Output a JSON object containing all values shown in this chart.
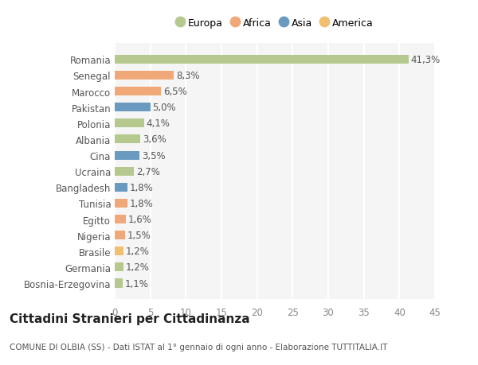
{
  "categories": [
    "Bosnia-Erzegovina",
    "Germania",
    "Brasile",
    "Nigeria",
    "Egitto",
    "Tunisia",
    "Bangladesh",
    "Ucraina",
    "Cina",
    "Albania",
    "Polonia",
    "Pakistan",
    "Marocco",
    "Senegal",
    "Romania"
  ],
  "values": [
    1.1,
    1.2,
    1.2,
    1.5,
    1.6,
    1.8,
    1.8,
    2.7,
    3.5,
    3.6,
    4.1,
    5.0,
    6.5,
    8.3,
    41.3
  ],
  "labels": [
    "1,1%",
    "1,2%",
    "1,2%",
    "1,5%",
    "1,6%",
    "1,8%",
    "1,8%",
    "2,7%",
    "3,5%",
    "3,6%",
    "4,1%",
    "5,0%",
    "6,5%",
    "8,3%",
    "41,3%"
  ],
  "colors": [
    "#b5c98e",
    "#b5c98e",
    "#f0c070",
    "#f0a878",
    "#f0a878",
    "#f0a878",
    "#6a9abf",
    "#b5c98e",
    "#6a9abf",
    "#b5c98e",
    "#b5c98e",
    "#6a9abf",
    "#f0a878",
    "#f0a878",
    "#b5c98e"
  ],
  "legend_labels": [
    "Europa",
    "Africa",
    "Asia",
    "America"
  ],
  "legend_colors": [
    "#b5c98e",
    "#f0a878",
    "#6a9abf",
    "#f0c070"
  ],
  "title": "Cittadini Stranieri per Cittadinanza",
  "subtitle": "COMUNE DI OLBIA (SS) - Dati ISTAT al 1° gennaio di ogni anno - Elaborazione TUTTITALIA.IT",
  "xlim": [
    0,
    45
  ],
  "xticks": [
    0,
    5,
    10,
    15,
    20,
    25,
    30,
    35,
    40,
    45
  ],
  "background_color": "#ffffff",
  "plot_bg_color": "#f5f5f5",
  "grid_color": "#ffffff",
  "bar_height": 0.55,
  "title_fontsize": 11,
  "subtitle_fontsize": 7.5,
  "label_fontsize": 8.5,
  "tick_fontsize": 8.5,
  "legend_fontsize": 9
}
